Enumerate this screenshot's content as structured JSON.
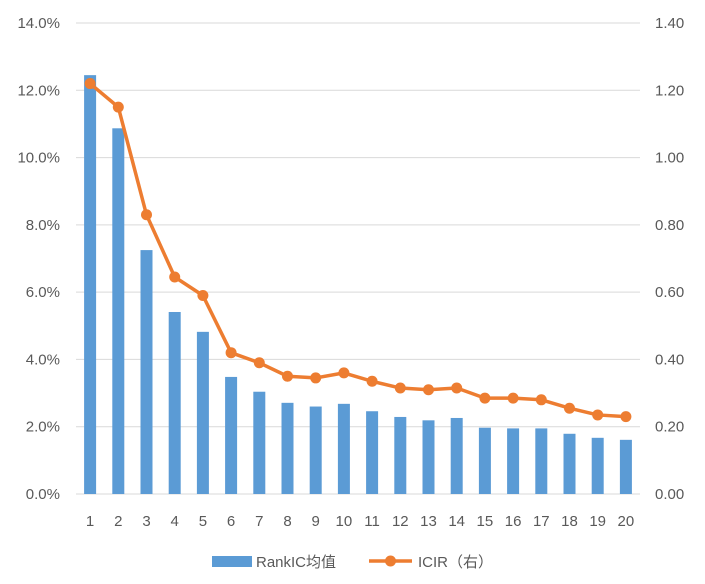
{
  "chart_data": {
    "type": "bar",
    "categories": [
      "1",
      "2",
      "3",
      "4",
      "5",
      "6",
      "7",
      "8",
      "9",
      "10",
      "11",
      "12",
      "13",
      "14",
      "15",
      "16",
      "17",
      "18",
      "19",
      "20"
    ],
    "series": [
      {
        "name": "RankIC均值",
        "type": "bar",
        "axis": "left",
        "color": "#5B9BD5",
        "values": [
          0.1245,
          0.1087,
          0.0725,
          0.0541,
          0.0482,
          0.0348,
          0.0304,
          0.0271,
          0.026,
          0.0268,
          0.0246,
          0.0229,
          0.0219,
          0.0226,
          0.0197,
          0.0195,
          0.0195,
          0.0179,
          0.0167,
          0.0161
        ]
      },
      {
        "name": "ICIR（右）",
        "type": "line",
        "axis": "right",
        "color": "#ED7D31",
        "values": [
          1.22,
          1.15,
          0.83,
          0.645,
          0.59,
          0.42,
          0.39,
          0.35,
          0.345,
          0.36,
          0.335,
          0.315,
          0.31,
          0.315,
          0.285,
          0.285,
          0.28,
          0.255,
          0.235,
          0.23
        ]
      }
    ],
    "ylim_left": [
      0,
      0.14
    ],
    "ylim_right": [
      0,
      1.4
    ],
    "y_left_ticks": [
      "0.0%",
      "2.0%",
      "4.0%",
      "6.0%",
      "8.0%",
      "10.0%",
      "12.0%",
      "14.0%"
    ],
    "y_right_ticks": [
      "0.00",
      "0.20",
      "0.40",
      "0.60",
      "0.80",
      "1.00",
      "1.20",
      "1.40"
    ],
    "grid": true,
    "legend_position": "bottom"
  }
}
